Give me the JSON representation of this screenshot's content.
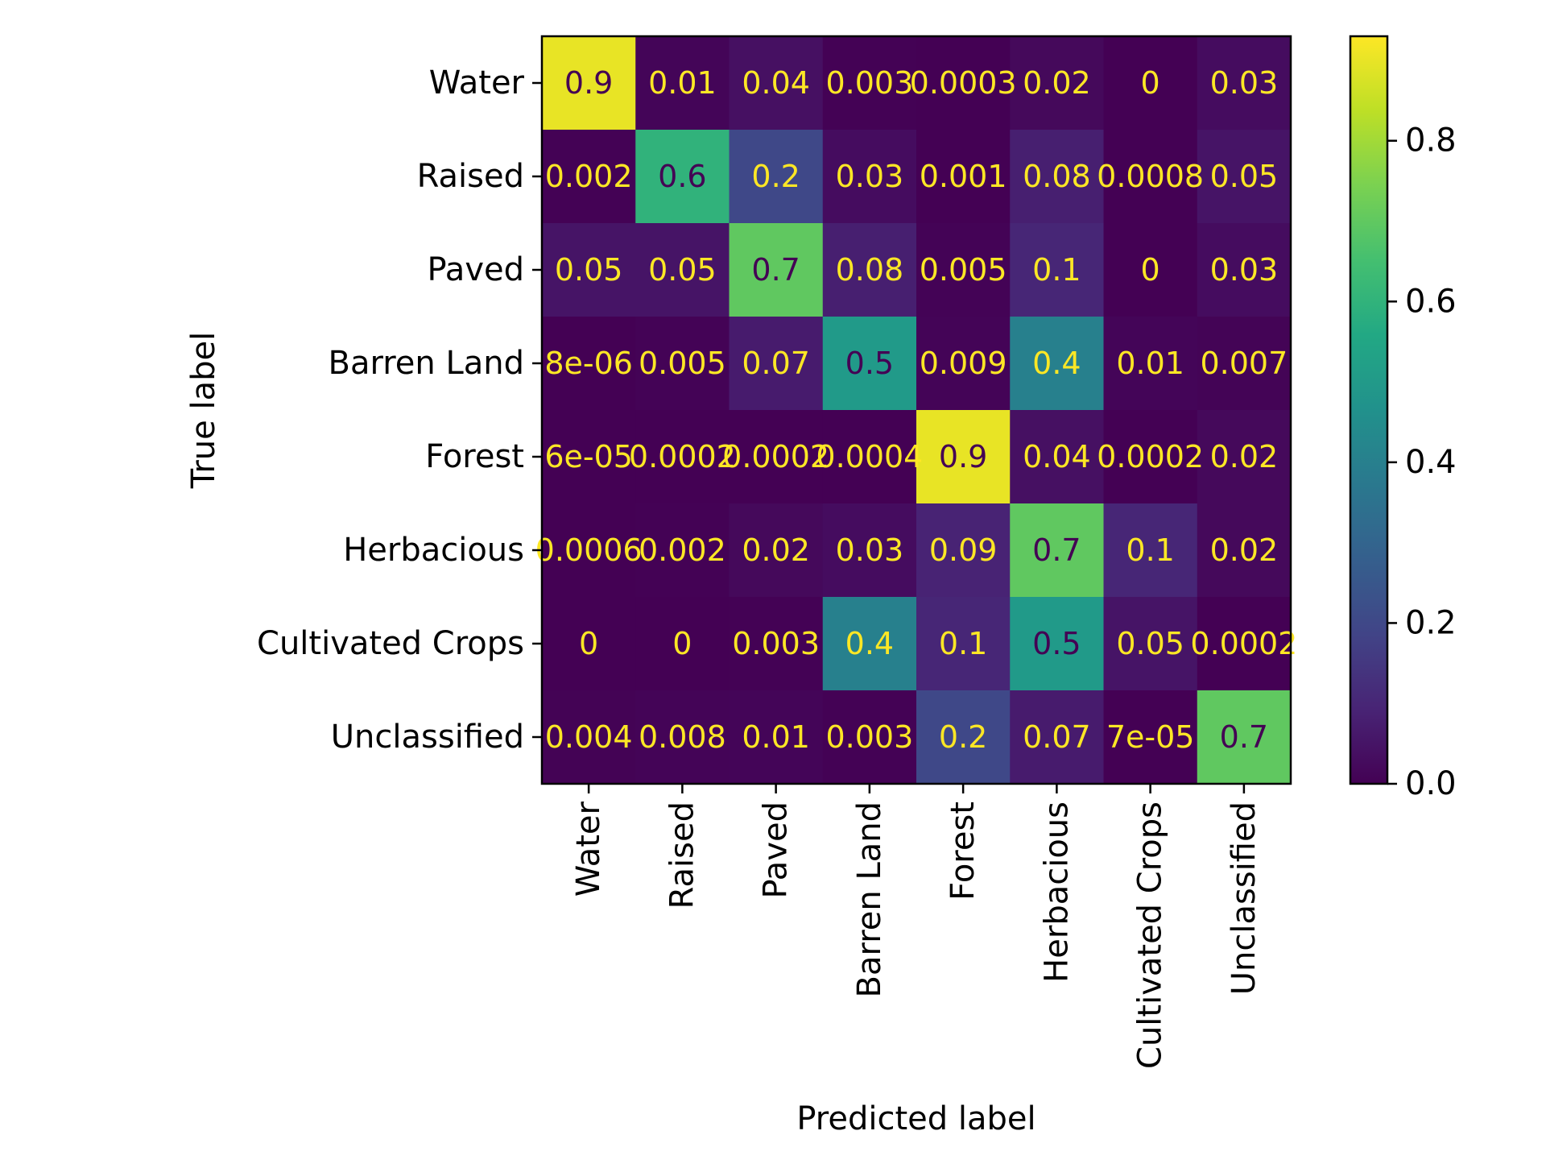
{
  "chart_data": {
    "type": "heatmap",
    "title": "",
    "xlabel": "Predicted label",
    "ylabel": "True label",
    "x_categories": [
      "Water",
      "Raised",
      "Paved",
      "Barren Land",
      "Forest",
      "Herbacious",
      "Cultivated Crops",
      "Unclassified"
    ],
    "y_categories": [
      "Water",
      "Raised",
      "Paved",
      "Barren Land",
      "Forest",
      "Herbacious",
      "Cultivated Crops",
      "Unclassified"
    ],
    "values": [
      [
        0.9,
        0.01,
        0.04,
        0.003,
        0.0003,
        0.02,
        0,
        0.03
      ],
      [
        0.002,
        0.6,
        0.2,
        0.03,
        0.001,
        0.08,
        0.0008,
        0.05
      ],
      [
        0.05,
        0.05,
        0.7,
        0.08,
        0.005,
        0.1,
        0,
        0.03
      ],
      [
        8e-06,
        0.005,
        0.07,
        0.5,
        0.009,
        0.4,
        0.01,
        0.007
      ],
      [
        6e-05,
        0.0002,
        0.0002,
        0.0004,
        0.9,
        0.04,
        0.0002,
        0.02
      ],
      [
        0.0006,
        0.002,
        0.02,
        0.03,
        0.09,
        0.7,
        0.1,
        0.02
      ],
      [
        0,
        0,
        0.003,
        0.4,
        0.1,
        0.5,
        0.05,
        0.0002
      ],
      [
        0.004,
        0.008,
        0.01,
        0.003,
        0.2,
        0.07,
        7e-05,
        0.7
      ]
    ],
    "labels": [
      [
        "0.9",
        "0.01",
        "0.04",
        "0.003",
        "0.0003",
        "0.02",
        "0",
        "0.03"
      ],
      [
        "0.002",
        "0.6",
        "0.2",
        "0.03",
        "0.001",
        "0.08",
        "0.0008",
        "0.05"
      ],
      [
        "0.05",
        "0.05",
        "0.7",
        "0.08",
        "0.005",
        "0.1",
        "0",
        "0.03"
      ],
      [
        "8e-06",
        "0.005",
        "0.07",
        "0.5",
        "0.009",
        "0.4",
        "0.01",
        "0.007"
      ],
      [
        "6e-05",
        "0.0002",
        "0.0002",
        "0.0004",
        "0.9",
        "0.04",
        "0.0002",
        "0.02"
      ],
      [
        "0.0006",
        "0.002",
        "0.02",
        "0.03",
        "0.09",
        "0.7",
        "0.1",
        "0.02"
      ],
      [
        "0",
        "0",
        "0.003",
        "0.4",
        "0.1",
        "0.5",
        "0.05",
        "0.0002"
      ],
      [
        "0.004",
        "0.008",
        "0.01",
        "0.003",
        "0.2",
        "0.07",
        "7e-05",
        "0.7"
      ]
    ],
    "colorbar": {
      "range": [
        0,
        0.93
      ],
      "ticks": [
        0.0,
        0.2,
        0.4,
        0.6,
        0.8
      ],
      "tick_labels": [
        "0.0",
        "0.2",
        "0.4",
        "0.6",
        "0.8"
      ],
      "colormap": "viridis"
    },
    "text_color_dark": "#440154",
    "text_color_light": "#fde725",
    "grid": false
  }
}
